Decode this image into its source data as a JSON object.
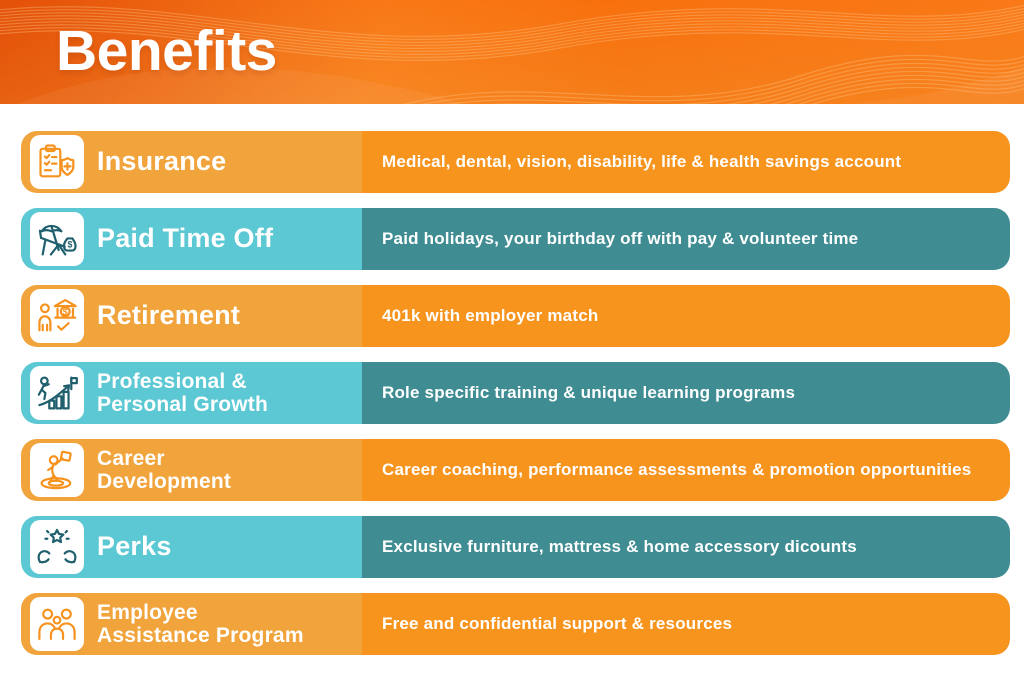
{
  "header": {
    "title": "Benefits"
  },
  "colors": {
    "header_orange_top": "#F8700E",
    "header_orange_bottom": "#F57E19",
    "row_orange_light": "#F1A33C",
    "row_orange_dark": "#F7941E",
    "row_teal_light": "#5BC8D3",
    "row_teal_dark": "#3F8D93",
    "icon_orange": "#F6921E",
    "icon_teal": "#20606E",
    "text_white": "#FFFFFF"
  },
  "benefits": [
    {
      "icon": "insurance-icon",
      "theme": "orange",
      "title": "Insurance",
      "description": "Medical, dental, vision, disability, life & health savings account"
    },
    {
      "icon": "paid-time-off-icon",
      "theme": "teal",
      "title": "Paid Time Off",
      "description": "Paid holidays, your birthday off with pay & volunteer time"
    },
    {
      "icon": "retirement-icon",
      "theme": "orange",
      "title": "Retirement",
      "description": "401k with employer match"
    },
    {
      "icon": "professional-personal-growth-icon",
      "theme": "teal",
      "title": "Professional &\nPersonal Growth",
      "description": "Role specific training & unique learning programs"
    },
    {
      "icon": "career-development-icon",
      "theme": "orange",
      "title": "Career\nDevelopment",
      "description": "Career coaching, performance assessments & promotion opportunities"
    },
    {
      "icon": "perks-icon",
      "theme": "teal",
      "title": "Perks",
      "description": "Exclusive furniture, mattress & home accessory dicounts"
    },
    {
      "icon": "employee-assistance-program-icon",
      "theme": "orange",
      "title": "Employee\nAssistance Program",
      "description": "Free and confidential support & resources"
    }
  ]
}
